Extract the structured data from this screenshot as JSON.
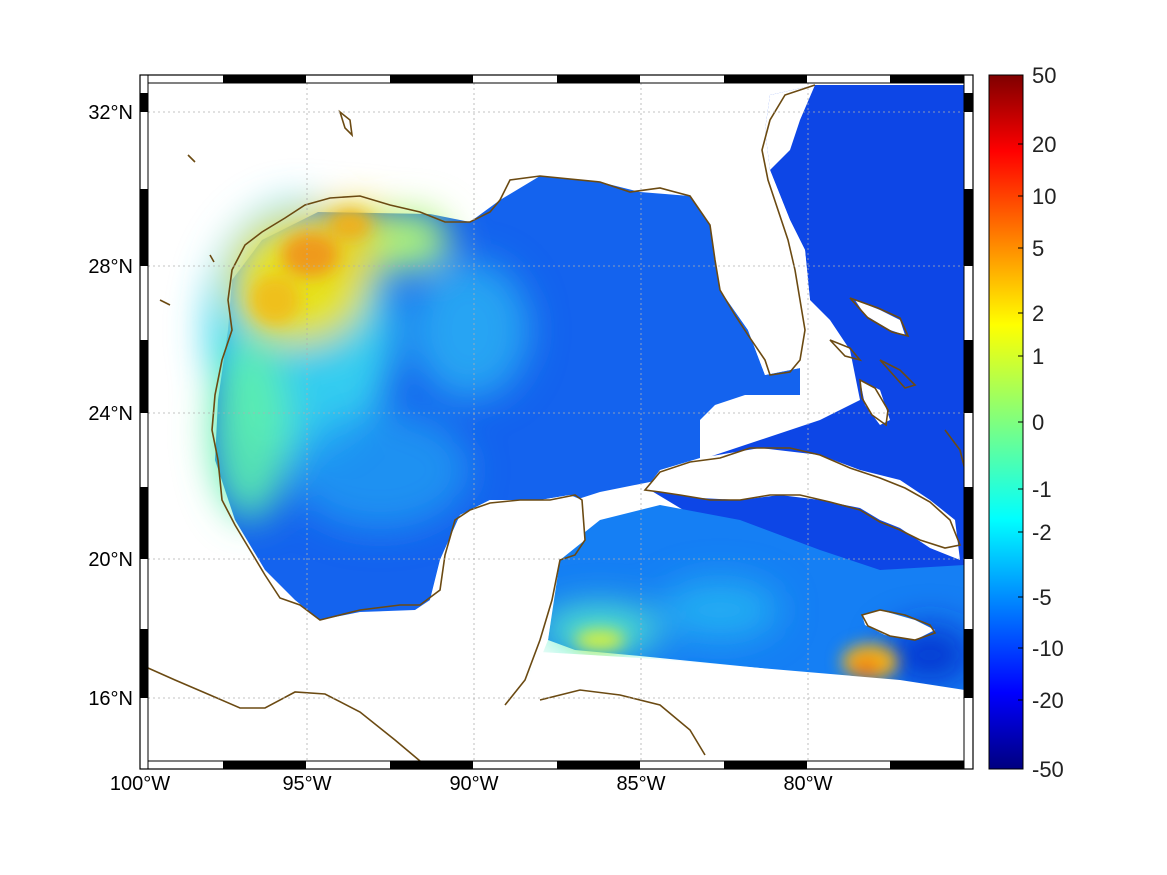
{
  "map": {
    "lat_labels": [
      "32°N",
      "28°N",
      "24°N",
      "20°N",
      "16°N"
    ],
    "lon_labels": [
      "100°W",
      "95°W",
      "90°W",
      "85°W",
      "80°W"
    ],
    "lat_ticks": [
      32,
      28,
      24,
      20,
      16
    ],
    "lon_ticks": [
      -100,
      -95,
      -90,
      -85,
      -80
    ],
    "lon_range": [
      -100,
      -75
    ],
    "lat_range": [
      14.2,
      33
    ],
    "grid": true,
    "coastline_color": "#6b4a12"
  },
  "colorbar": {
    "tick_labels": [
      "50",
      "20",
      "10",
      "5",
      "2",
      "1",
      "0",
      "-1",
      "-2",
      "-5",
      "-10",
      "-20",
      "-50"
    ],
    "colormap": "jet",
    "colors": [
      "#00007f",
      "#0000ff",
      "#007fff",
      "#00ffff",
      "#7fff7f",
      "#ffff00",
      "#ff7f00",
      "#ff0000",
      "#7f0000"
    ]
  }
}
